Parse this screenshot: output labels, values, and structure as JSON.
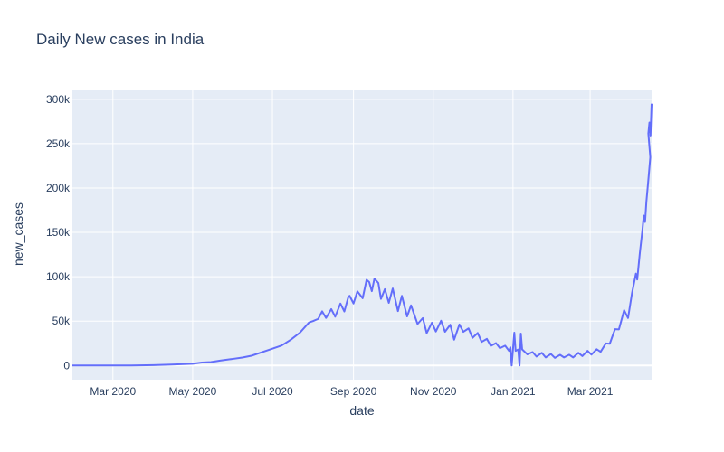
{
  "chart_data": {
    "type": "line",
    "title": "Daily New cases in India",
    "xlabel": "date",
    "ylabel": "new_cases",
    "x_range": [
      "2020-01-30",
      "2021-04-17"
    ],
    "ylim": [
      -16000,
      310000
    ],
    "x_ticks": [
      {
        "date": "2020-03-01",
        "label": "Mar 2020"
      },
      {
        "date": "2020-05-01",
        "label": "May 2020"
      },
      {
        "date": "2020-07-01",
        "label": "Jul 2020"
      },
      {
        "date": "2020-09-01",
        "label": "Sep 2020"
      },
      {
        "date": "2020-11-01",
        "label": "Nov 2020"
      },
      {
        "date": "2021-01-01",
        "label": "Jan 2021"
      },
      {
        "date": "2021-03-01",
        "label": "Mar 2021"
      }
    ],
    "y_ticks": [
      {
        "value": 0,
        "label": "0"
      },
      {
        "value": 50000,
        "label": "50k"
      },
      {
        "value": 100000,
        "label": "100k"
      },
      {
        "value": 150000,
        "label": "150k"
      },
      {
        "value": 200000,
        "label": "200k"
      },
      {
        "value": 250000,
        "label": "250k"
      },
      {
        "value": 300000,
        "label": "300k"
      }
    ],
    "grid": true,
    "line_color": "#636efa",
    "plot_bg": "#e5ecf6",
    "series": [
      {
        "points": [
          [
            "2020-01-30",
            1
          ],
          [
            "2020-02-15",
            0
          ],
          [
            "2020-03-01",
            3
          ],
          [
            "2020-03-15",
            20
          ],
          [
            "2020-04-01",
            400
          ],
          [
            "2020-04-15",
            1000
          ],
          [
            "2020-05-01",
            2000
          ],
          [
            "2020-05-08",
            3400
          ],
          [
            "2020-05-15",
            3900
          ],
          [
            "2020-05-22",
            5500
          ],
          [
            "2020-06-01",
            7500
          ],
          [
            "2020-06-08",
            9000
          ],
          [
            "2020-06-15",
            11000
          ],
          [
            "2020-06-22",
            14500
          ],
          [
            "2020-07-01",
            19000
          ],
          [
            "2020-07-08",
            22500
          ],
          [
            "2020-07-15",
            29000
          ],
          [
            "2020-07-22",
            37000
          ],
          [
            "2020-07-29",
            48500
          ],
          [
            "2020-08-01",
            50000
          ],
          [
            "2020-08-05",
            52500
          ],
          [
            "2020-08-08",
            61000
          ],
          [
            "2020-08-11",
            53600
          ],
          [
            "2020-08-15",
            63500
          ],
          [
            "2020-08-18",
            55000
          ],
          [
            "2020-08-22",
            69800
          ],
          [
            "2020-08-25",
            60900
          ],
          [
            "2020-08-28",
            77000
          ],
          [
            "2020-08-29",
            78500
          ],
          [
            "2020-09-01",
            69900
          ],
          [
            "2020-09-04",
            83500
          ],
          [
            "2020-09-08",
            75800
          ],
          [
            "2020-09-11",
            96500
          ],
          [
            "2020-09-13",
            94000
          ],
          [
            "2020-09-15",
            83800
          ],
          [
            "2020-09-17",
            97900
          ],
          [
            "2020-09-20",
            93000
          ],
          [
            "2020-09-22",
            75000
          ],
          [
            "2020-09-25",
            86000
          ],
          [
            "2020-09-28",
            70600
          ],
          [
            "2020-10-01",
            86800
          ],
          [
            "2020-10-05",
            61300
          ],
          [
            "2020-10-08",
            78500
          ],
          [
            "2020-10-12",
            55300
          ],
          [
            "2020-10-15",
            67700
          ],
          [
            "2020-10-20",
            46800
          ],
          [
            "2020-10-24",
            53400
          ],
          [
            "2020-10-27",
            36500
          ],
          [
            "2020-10-31",
            48200
          ],
          [
            "2020-11-03",
            38300
          ],
          [
            "2020-11-07",
            50400
          ],
          [
            "2020-11-10",
            38000
          ],
          [
            "2020-11-14",
            45900
          ],
          [
            "2020-11-17",
            29100
          ],
          [
            "2020-11-21",
            46200
          ],
          [
            "2020-11-24",
            37900
          ],
          [
            "2020-11-28",
            41800
          ],
          [
            "2020-12-01",
            31100
          ],
          [
            "2020-12-05",
            36600
          ],
          [
            "2020-12-08",
            26600
          ],
          [
            "2020-12-12",
            30000
          ],
          [
            "2020-12-15",
            22100
          ],
          [
            "2020-12-19",
            25200
          ],
          [
            "2020-12-22",
            19500
          ],
          [
            "2020-12-26",
            22300
          ],
          [
            "2020-12-29",
            16400
          ],
          [
            "2020-12-30",
            20500
          ],
          [
            "2020-12-31",
            0
          ],
          [
            "2021-01-02",
            37000
          ],
          [
            "2021-01-03",
            16500
          ],
          [
            "2021-01-05",
            18000
          ],
          [
            "2021-01-06",
            0
          ],
          [
            "2021-01-07",
            36000
          ],
          [
            "2021-01-08",
            18100
          ],
          [
            "2021-01-12",
            12500
          ],
          [
            "2021-01-16",
            15100
          ],
          [
            "2021-01-19",
            10000
          ],
          [
            "2021-01-23",
            14300
          ],
          [
            "2021-01-26",
            9100
          ],
          [
            "2021-01-30",
            13000
          ],
          [
            "2021-02-02",
            8600
          ],
          [
            "2021-02-06",
            12000
          ],
          [
            "2021-02-09",
            9100
          ],
          [
            "2021-02-13",
            12100
          ],
          [
            "2021-02-16",
            9100
          ],
          [
            "2021-02-20",
            14300
          ],
          [
            "2021-02-23",
            10600
          ],
          [
            "2021-02-27",
            16500
          ],
          [
            "2021-03-02",
            12300
          ],
          [
            "2021-03-06",
            18300
          ],
          [
            "2021-03-09",
            15400
          ],
          [
            "2021-03-13",
            24900
          ],
          [
            "2021-03-16",
            24500
          ],
          [
            "2021-03-20",
            40900
          ],
          [
            "2021-03-23",
            40700
          ],
          [
            "2021-03-27",
            62300
          ],
          [
            "2021-03-30",
            53500
          ],
          [
            "2021-04-02",
            81400
          ],
          [
            "2021-04-05",
            103500
          ],
          [
            "2021-04-06",
            96900
          ],
          [
            "2021-04-08",
            126800
          ],
          [
            "2021-04-10",
            152900
          ],
          [
            "2021-04-11",
            168900
          ],
          [
            "2021-04-12",
            161700
          ],
          [
            "2021-04-13",
            184400
          ],
          [
            "2021-04-14",
            200700
          ],
          [
            "2021-04-15",
            217400
          ],
          [
            "2021-04-16",
            234700
          ],
          [
            "2021-04-17",
            261500
          ],
          [
            "2021-04-17",
            273800
          ],
          [
            "2021-04-17",
            259200
          ],
          [
            "2021-04-17",
            295000
          ]
        ]
      }
    ]
  }
}
